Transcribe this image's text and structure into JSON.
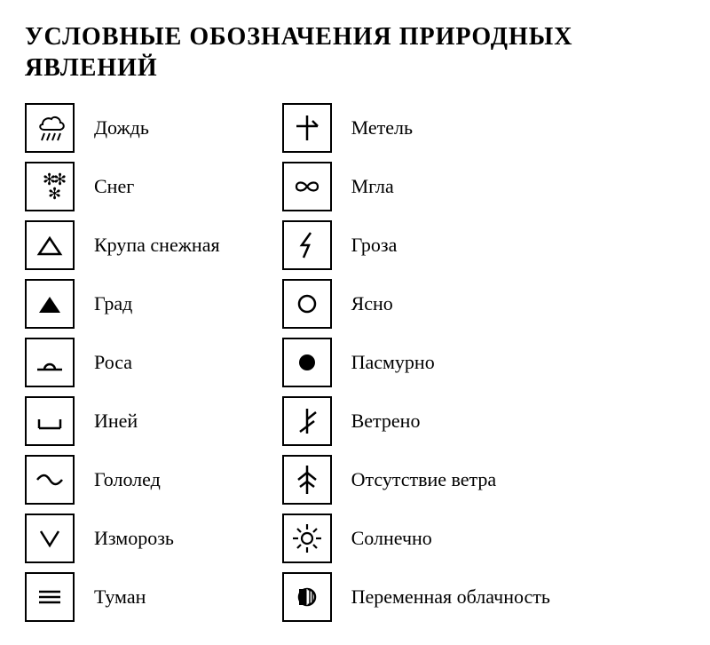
{
  "title": "УСЛОВНЫЕ ОБОЗНАЧЕНИЯ ПРИРОДНЫХ ЯВЛЕНИЙ",
  "title_fontsize": 28,
  "title_color": "#000000",
  "label_fontsize": 22,
  "label_color": "#000000",
  "background_color": "#ffffff",
  "border_color": "#000000",
  "box_size": 56,
  "columns": [
    {
      "items": [
        {
          "icon": "rain",
          "label": "Дождь"
        },
        {
          "icon": "snow",
          "label": "Снег"
        },
        {
          "icon": "snow_groats",
          "label": "Крупа снежная"
        },
        {
          "icon": "hail",
          "label": "Град"
        },
        {
          "icon": "dew",
          "label": "Роса"
        },
        {
          "icon": "hoarfrost",
          "label": "Иней"
        },
        {
          "icon": "glaze_ice",
          "label": "Гололед"
        },
        {
          "icon": "rime",
          "label": "Изморозь"
        },
        {
          "icon": "fog",
          "label": "Туман"
        }
      ]
    },
    {
      "items": [
        {
          "icon": "blizzard",
          "label": "Метель"
        },
        {
          "icon": "haze",
          "label": "Мгла"
        },
        {
          "icon": "thunderstorm",
          "label": "Гроза"
        },
        {
          "icon": "clear",
          "label": "Ясно"
        },
        {
          "icon": "overcast",
          "label": "Пасмурно"
        },
        {
          "icon": "windy",
          "label": "Ветрено"
        },
        {
          "icon": "no_wind",
          "label": "Отсутствие ветра"
        },
        {
          "icon": "sunny",
          "label": "Солнечно"
        },
        {
          "icon": "variable_clouds",
          "label": "Переменная облачность"
        }
      ]
    }
  ],
  "icon_svg": {
    "rain": "<svg width='44' height='44' viewBox='0 0 44 44'><path d='M14 18 C14 12 20 10 24 12 C26 8 34 10 34 16 C38 16 40 22 34 24 L16 24 C10 24 10 18 14 18 Z' fill='none' stroke='#000' stroke-width='2'/><line x1='16' y1='28' x2='13' y2='36' stroke='#000' stroke-width='2'/><line x1='22' y1='28' x2='19' y2='36' stroke='#000' stroke-width='2'/><line x1='28' y1='28' x2='25' y2='36' stroke='#000' stroke-width='2'/><line x1='34' y1='28' x2='31' y2='36' stroke='#000' stroke-width='2'/></svg>",
    "snow": "<svg width='44' height='44' viewBox='0 0 44 44'><text x='14' y='20' font-size='18' font-family='serif'>✻</text><text x='26' y='20' font-size='18' font-family='serif'>✻</text><text x='20' y='36' font-size='18' font-family='serif'>✻</text></svg>",
    "snow_groats": "<svg width='44' height='44' viewBox='0 0 44 44'><path d='M10 32 L22 14 L34 32 Z' fill='none' stroke='#000' stroke-width='2.5'/></svg>",
    "hail": "<svg width='44' height='44' viewBox='0 0 44 44'><path d='M10 32 L22 14 L34 32 Z' fill='#000'/></svg>",
    "dew": "<svg width='44' height='44' viewBox='0 0 44 44'><line x1='8' y1='30' x2='36' y2='30' stroke='#000' stroke-width='2.5'/><path d='M16 30 A6 6 0 0 1 28 30' fill='none' stroke='#000' stroke-width='2.5'/></svg>",
    "hoarfrost": "<svg width='44' height='44' viewBox='0 0 44 44'><line x1='10' y1='30' x2='34' y2='30' stroke='#000' stroke-width='2.5'/><line x1='10' y1='30' x2='10' y2='20' stroke='#000' stroke-width='2.5'/><line x1='34' y1='30' x2='34' y2='20' stroke='#000' stroke-width='2.5'/></svg>",
    "glaze_ice": "<svg width='44' height='44' viewBox='0 0 44 44'><path d='M8 22 Q16 12 22 22 Q28 32 36 22' fill='none' stroke='#000' stroke-width='2.5'/></svg>",
    "rime": "<svg width='44' height='44' viewBox='0 0 44 44'><path d='M12 14 L22 30 L32 14' fill='none' stroke='#000' stroke-width='2.5'/></svg>",
    "fog": "<svg width='44' height='44' viewBox='0 0 44 44'><line x1='10' y1='16' x2='34' y2='16' stroke='#000' stroke-width='2.5'/><line x1='10' y1='22' x2='34' y2='22' stroke='#000' stroke-width='2.5'/><line x1='10' y1='28' x2='34' y2='28' stroke='#000' stroke-width='2.5'/></svg>",
    "blizzard": "<svg width='44' height='44' viewBox='0 0 44 44'><line x1='22' y1='8' x2='22' y2='36' stroke='#000' stroke-width='2.5'/><line x1='10' y1='20' x2='34' y2='20' stroke='#000' stroke-width='2.5'/><line x1='34' y1='20' x2='28' y2='14' stroke='#000' stroke-width='2.5'/></svg>",
    "haze": "<svg width='44' height='44' viewBox='0 0 44 44'><path d='M10 22 C10 16 18 16 22 22 C26 28 34 28 34 22 C34 16 26 16 22 22 C18 28 10 28 10 22 Z' fill='none' stroke='#000' stroke-width='2.2'/></svg>",
    "thunderstorm": "<svg width='44' height='44' viewBox='0 0 44 44'><path d='M26 8 L16 22 L24 22 L18 36' fill='none' stroke='#000' stroke-width='2.5' stroke-linejoin='miter'/></svg>",
    "clear": "<svg width='44' height='44' viewBox='0 0 44 44'><circle cx='22' cy='22' r='9' fill='none' stroke='#000' stroke-width='2.5'/></svg>",
    "overcast": "<svg width='44' height='44' viewBox='0 0 44 44'><circle cx='22' cy='22' r='9' fill='#000'/></svg>",
    "windy": "<svg width='44' height='44' viewBox='0 0 44 44'><line x1='22' y1='36' x2='22' y2='8' stroke='#000' stroke-width='2.5'/><line x1='22' y1='20' x2='32' y2='12' stroke='#000' stroke-width='2.5'/><line x1='22' y1='28' x2='30' y2='22' stroke='#000' stroke-width='2.5'/><line x1='22' y1='28' x2='14' y2='34' stroke='#000' stroke-width='2.5'/></svg>",
    "no_wind": "<svg width='44' height='44' viewBox='0 0 44 44'><line x1='22' y1='38' x2='22' y2='6' stroke='#000' stroke-width='2.5'/><line x1='22' y1='14' x2='12' y2='22' stroke='#000' stroke-width='2.5'/><line x1='22' y1='14' x2='32' y2='22' stroke='#000' stroke-width='2.5'/><line x1='22' y1='24' x2='14' y2='30' stroke='#000' stroke-width='2.5'/><line x1='22' y1='24' x2='30' y2='30' stroke='#000' stroke-width='2.5'/></svg>",
    "sunny": "<svg width='44' height='44' viewBox='0 0 44 44'><circle cx='22' cy='22' r='6' fill='none' stroke='#000' stroke-width='2.2'/><g stroke='#000' stroke-width='2.2'><line x1='22' y1='6' x2='22' y2='12'/><line x1='22' y1='32' x2='22' y2='38'/><line x1='6' y1='22' x2='12' y2='22'/><line x1='32' y1='22' x2='38' y2='22'/><line x1='11' y1='11' x2='15' y2='15'/><line x1='29' y1='29' x2='33' y2='33'/><line x1='11' y1='33' x2='15' y2='29'/><line x1='29' y1='15' x2='33' y2='11'/></g></svg>",
    "variable_clouds": "<svg width='44' height='44' viewBox='0 0 44 44'><circle cx='22' cy='22' r='9' fill='none' stroke='#000' stroke-width='2.5'/><rect x='13' y='13' width='9' height='18' fill='#000'/><line x1='22' y1='13' x2='22' y2='31' stroke='#fff' stroke-width='1'/><line x1='25' y1='14' x2='25' y2='30' stroke='#000' stroke-width='1.5'/><line x1='28' y1='16' x2='28' y2='28' stroke='#000' stroke-width='1.5'/></svg>"
  }
}
